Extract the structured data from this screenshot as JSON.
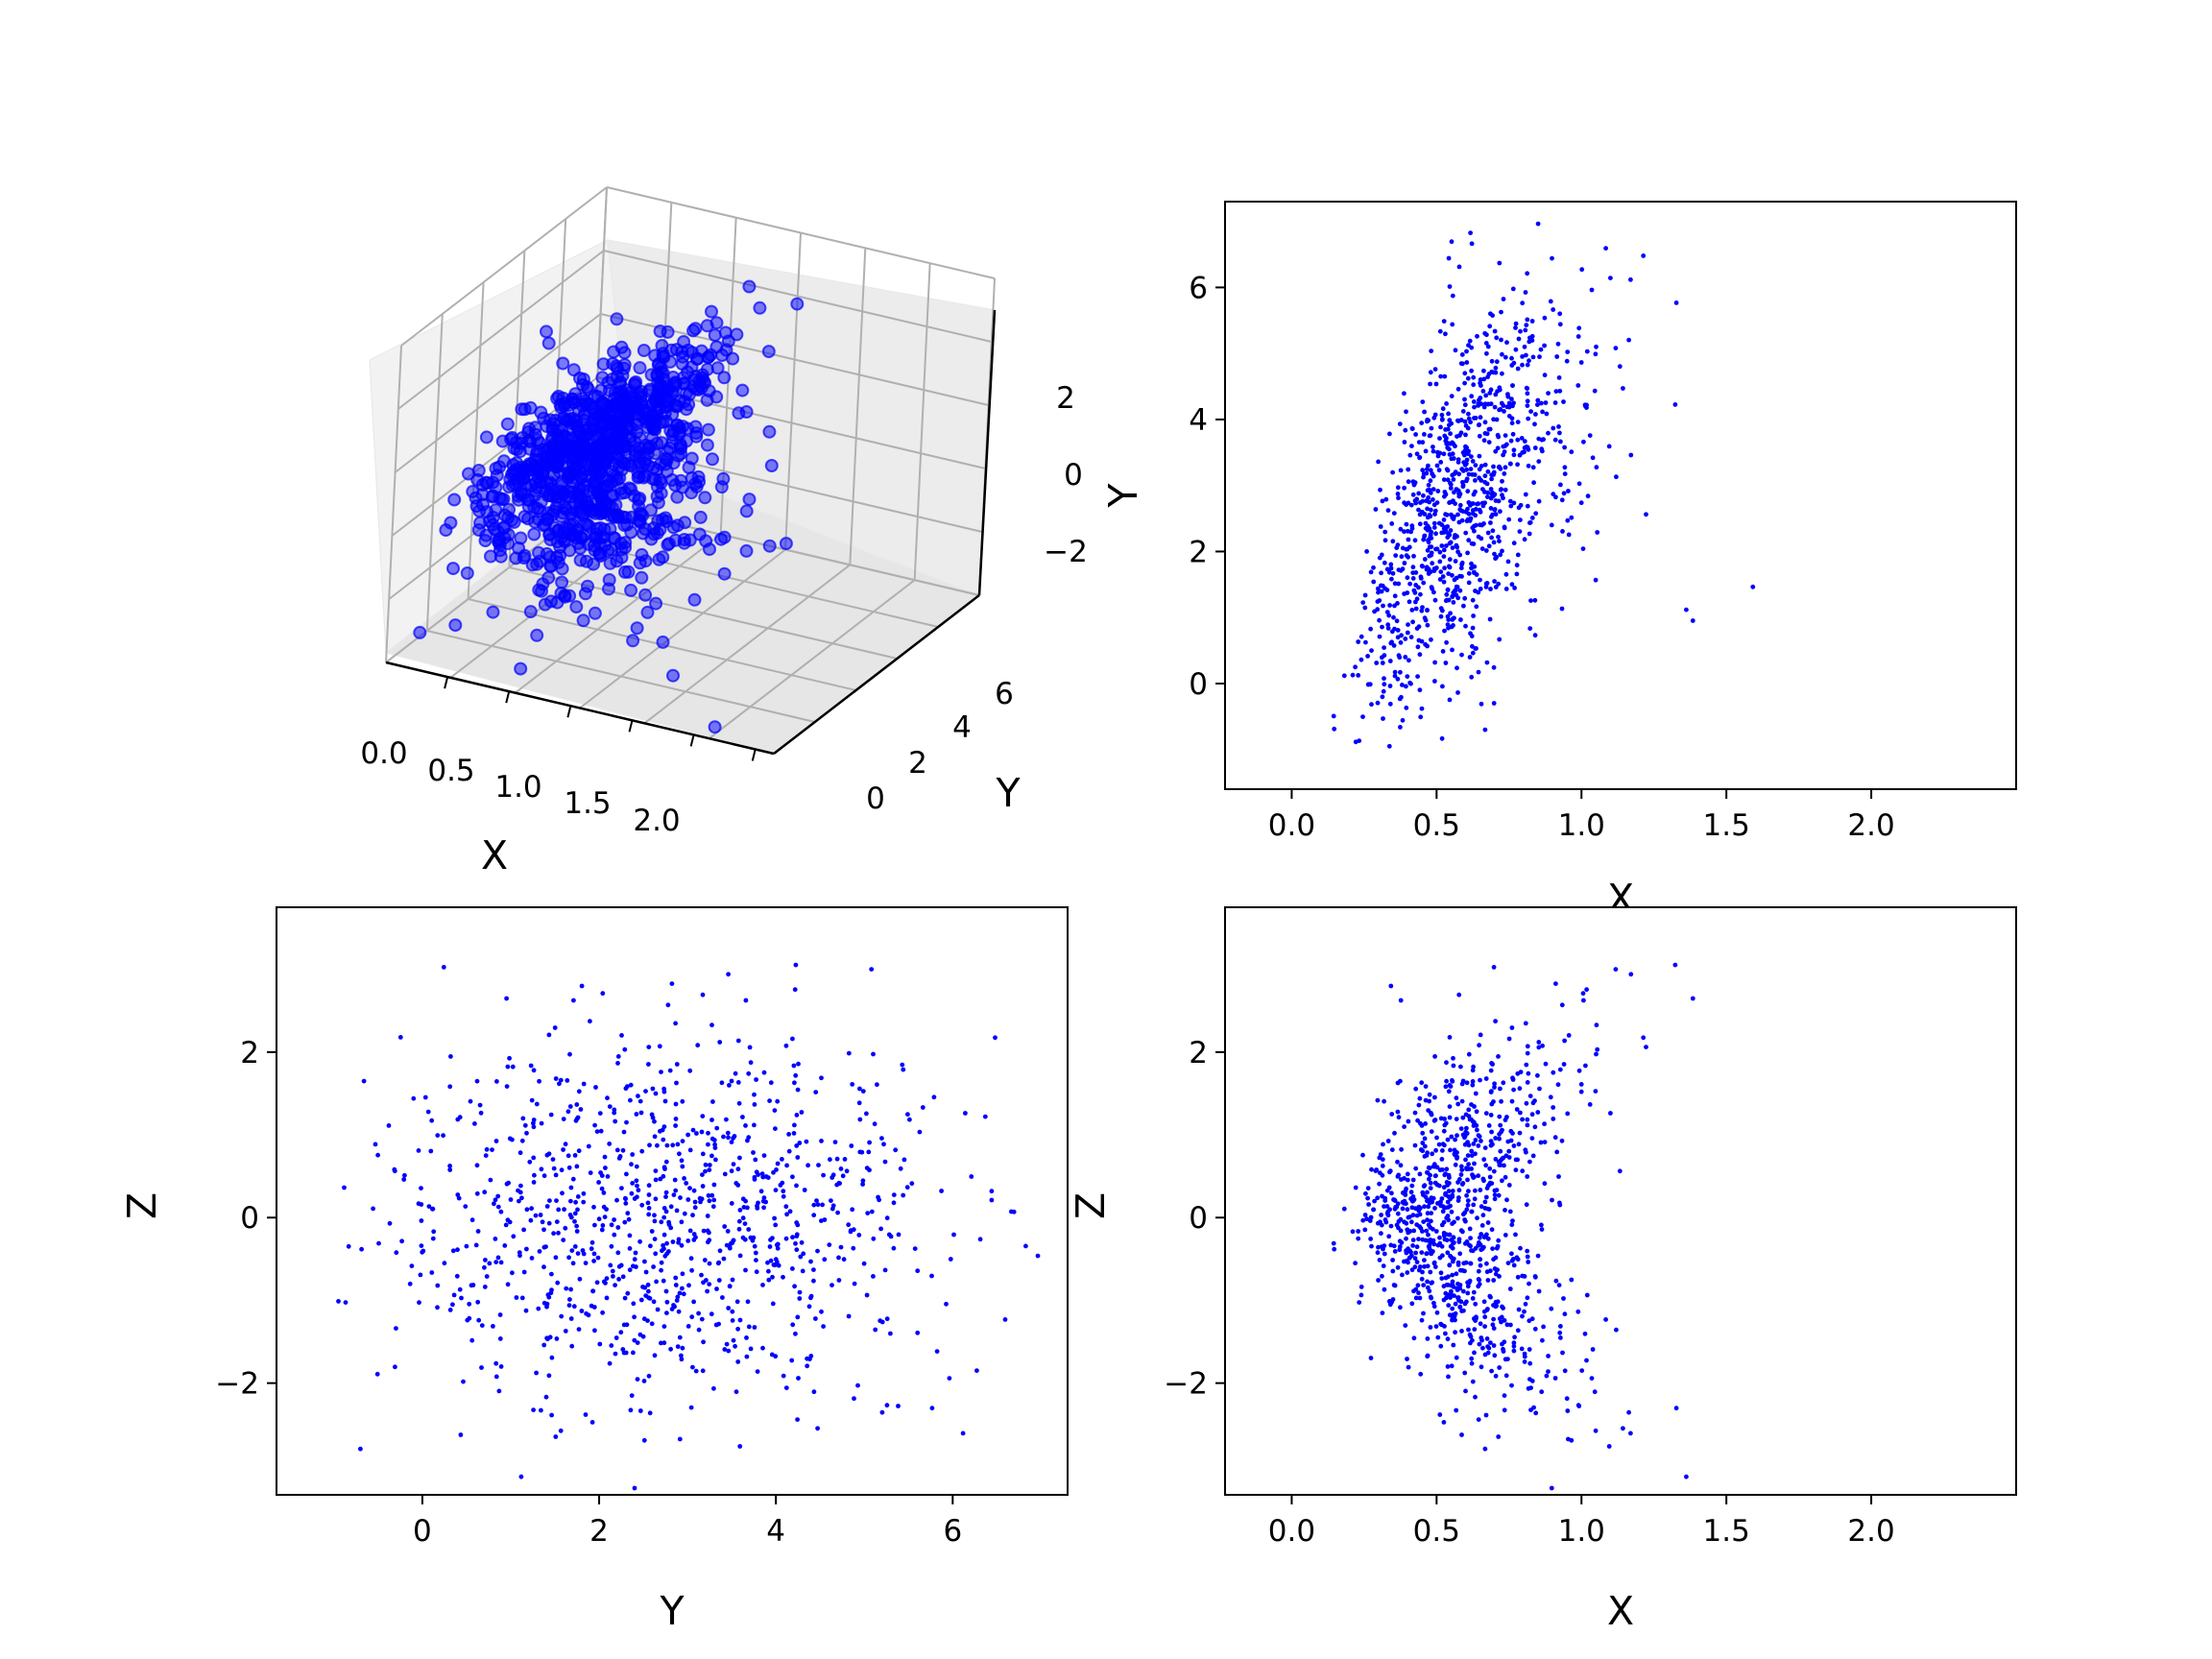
{
  "colors": {
    "points": "#0000ff",
    "axes": "#000000",
    "grid": "#b0b0b0",
    "pane": "#f2f2f2"
  },
  "chart_data": [
    {
      "id": "xyz-3d",
      "type": "scatter",
      "projection": "3d",
      "xlabel": "X",
      "ylabel": "Y",
      "zlabel": "",
      "xlim": [
        -0.1,
        2.4
      ],
      "ylim": [
        -1.3,
        6.9
      ],
      "zlim": [
        -3.0,
        3.4
      ],
      "xticks": [
        "0.0",
        "0.5",
        "1.0",
        "1.5",
        "2.0"
      ],
      "yticks": [
        "0",
        "2",
        "4",
        "6"
      ],
      "zticks": [
        "2",
        "0",
        "−2"
      ],
      "grid": true
    },
    {
      "id": "xy",
      "type": "scatter",
      "xlabel": "X",
      "ylabel": "Y",
      "xlim": [
        -0.23,
        2.5
      ],
      "ylim": [
        -1.6,
        7.3
      ],
      "xticks": [
        {
          "v": 0.0,
          "t": "0.0"
        },
        {
          "v": 0.5,
          "t": "0.5"
        },
        {
          "v": 1.0,
          "t": "1.0"
        },
        {
          "v": 1.5,
          "t": "1.5"
        },
        {
          "v": 2.0,
          "t": "2.0"
        }
      ],
      "yticks": [
        {
          "v": 0,
          "t": "0"
        },
        {
          "v": 2,
          "t": "2"
        },
        {
          "v": 4,
          "t": "4"
        },
        {
          "v": 6,
          "t": "6"
        }
      ],
      "grid": false
    },
    {
      "id": "yz",
      "type": "scatter",
      "xlabel": "Y",
      "ylabel": "Z",
      "xlim": [
        -1.65,
        7.3
      ],
      "ylim": [
        -3.35,
        3.75
      ],
      "xticks": [
        {
          "v": 0,
          "t": "0"
        },
        {
          "v": 2,
          "t": "2"
        },
        {
          "v": 4,
          "t": "4"
        },
        {
          "v": 6,
          "t": "6"
        }
      ],
      "yticks": [
        {
          "v": -2,
          "t": "−2"
        },
        {
          "v": 0,
          "t": "0"
        },
        {
          "v": 2,
          "t": "2"
        }
      ],
      "grid": false
    },
    {
      "id": "xz",
      "type": "scatter",
      "xlabel": "X",
      "ylabel": "Z",
      "xlim": [
        -0.23,
        2.5
      ],
      "ylim": [
        -3.35,
        3.75
      ],
      "xticks": [
        {
          "v": 0.0,
          "t": "0.0"
        },
        {
          "v": 0.5,
          "t": "0.5"
        },
        {
          "v": 1.0,
          "t": "1.0"
        },
        {
          "v": 1.5,
          "t": "1.5"
        },
        {
          "v": 2.0,
          "t": "2.0"
        }
      ],
      "yticks": [
        {
          "v": -2,
          "t": "−2"
        },
        {
          "v": 0,
          "t": "0"
        },
        {
          "v": 2,
          "t": "2"
        }
      ],
      "grid": false
    }
  ]
}
